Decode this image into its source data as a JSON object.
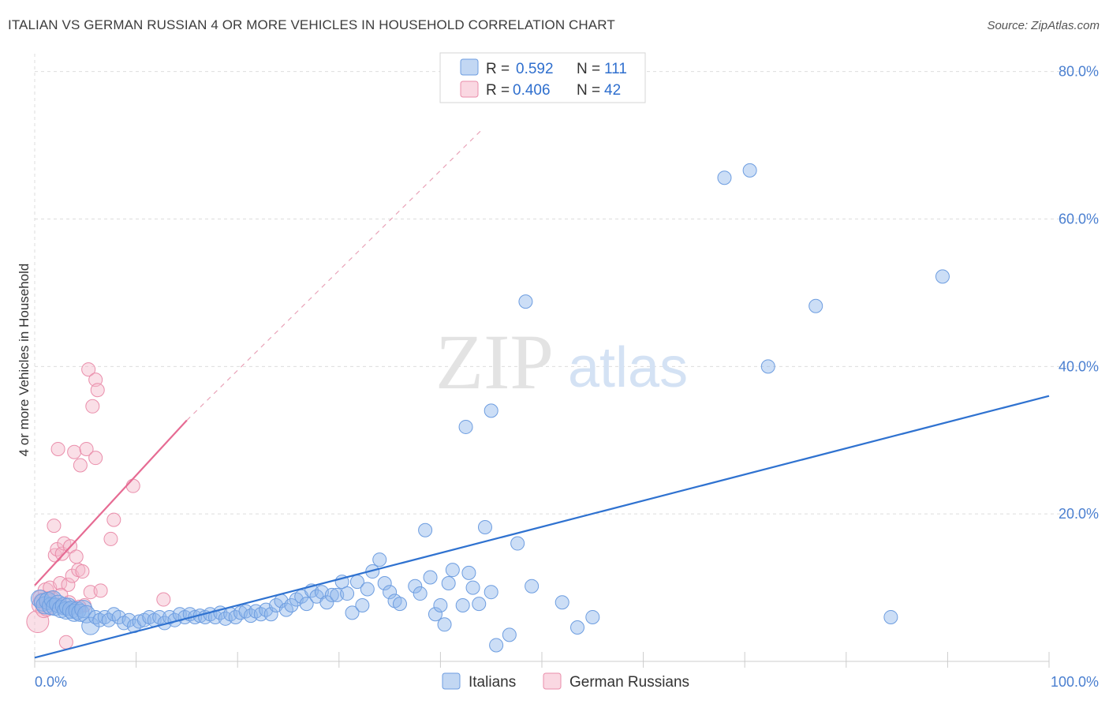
{
  "title": "ITALIAN VS GERMAN RUSSIAN 4 OR MORE VEHICLES IN HOUSEHOLD CORRELATION CHART",
  "source": "Source: ZipAtlas.com",
  "watermark": {
    "zip": "ZIP",
    "atlas": "atlas"
  },
  "colors": {
    "blue": "#8fb6ea",
    "blue_stroke": "#6d9de0",
    "blue_line": "#2f72d0",
    "pink": "#f5b8ca",
    "pink_stroke": "#ea8eab",
    "pink_line": "#e66b93",
    "grid": "#dddddd",
    "tick_text": "#4a7fd0"
  },
  "legend": {
    "rows": [
      {
        "r_label": "R = ",
        "r_value": "0.592",
        "n_label": "N = ",
        "n_value": "111"
      },
      {
        "r_label": "R = ",
        "r_value": "0.406",
        "n_label": "N = ",
        "n_value": "42"
      }
    ]
  },
  "bottom_legend": {
    "italians": "Italians",
    "german_russians": "German Russians"
  },
  "chart_data": {
    "type": "scatter",
    "title": "ITALIAN VS GERMAN RUSSIAN 4 OR MORE VEHICLES IN HOUSEHOLD CORRELATION CHART",
    "xlabel": "",
    "ylabel": "4 or more Vehicles in Household",
    "xlim": [
      0,
      100
    ],
    "ylim": [
      0,
      82
    ],
    "x_tick_labels": [
      "0.0%",
      "100.0%"
    ],
    "y_ticks": [
      20,
      40,
      60,
      80
    ],
    "y_tick_labels": [
      "20.0%",
      "40.0%",
      "60.0%",
      "80.0%"
    ],
    "grid": true,
    "series": [
      {
        "name": "Italians",
        "r": 0.592,
        "n": 111,
        "trend": {
          "x": [
            0,
            100
          ],
          "y": [
            0.5,
            36.0
          ],
          "dashed_extension": false
        },
        "points": [
          [
            0.5,
            8.5
          ],
          [
            0.8,
            8.0
          ],
          [
            1.0,
            7.6
          ],
          [
            1.3,
            8.2
          ],
          [
            1.6,
            7.5
          ],
          [
            1.8,
            8.4
          ],
          [
            2.0,
            7.4
          ],
          [
            2.3,
            7.8
          ],
          [
            2.6,
            7.1
          ],
          [
            2.9,
            7.5
          ],
          [
            3.1,
            6.9
          ],
          [
            3.3,
            7.4
          ],
          [
            3.6,
            7.0
          ],
          [
            3.9,
            6.6
          ],
          [
            4.2,
            6.9
          ],
          [
            4.5,
            6.6
          ],
          [
            4.8,
            7.1
          ],
          [
            5.1,
            6.4
          ],
          [
            5.5,
            4.8
          ],
          [
            6.0,
            6.0
          ],
          [
            6.4,
            5.6
          ],
          [
            6.9,
            6.0
          ],
          [
            7.3,
            5.6
          ],
          [
            7.8,
            6.4
          ],
          [
            8.3,
            6.0
          ],
          [
            8.8,
            5.2
          ],
          [
            9.3,
            5.6
          ],
          [
            9.8,
            4.8
          ],
          [
            10.3,
            5.4
          ],
          [
            10.8,
            5.6
          ],
          [
            11.3,
            6.0
          ],
          [
            11.8,
            5.6
          ],
          [
            12.3,
            6.0
          ],
          [
            12.8,
            5.2
          ],
          [
            13.3,
            6.0
          ],
          [
            13.8,
            5.6
          ],
          [
            14.3,
            6.4
          ],
          [
            14.8,
            6.0
          ],
          [
            15.3,
            6.4
          ],
          [
            15.8,
            6.0
          ],
          [
            16.3,
            6.2
          ],
          [
            16.8,
            6.0
          ],
          [
            17.3,
            6.4
          ],
          [
            17.8,
            6.0
          ],
          [
            18.3,
            6.6
          ],
          [
            18.8,
            5.8
          ],
          [
            19.3,
            6.4
          ],
          [
            19.8,
            6.0
          ],
          [
            20.3,
            6.6
          ],
          [
            20.8,
            6.8
          ],
          [
            21.3,
            6.2
          ],
          [
            21.8,
            6.8
          ],
          [
            22.3,
            6.4
          ],
          [
            22.8,
            7.0
          ],
          [
            23.3,
            6.4
          ],
          [
            23.8,
            7.6
          ],
          [
            24.3,
            8.2
          ],
          [
            24.8,
            7.0
          ],
          [
            25.3,
            7.6
          ],
          [
            25.8,
            8.4
          ],
          [
            26.3,
            8.8
          ],
          [
            26.8,
            7.8
          ],
          [
            27.3,
            9.6
          ],
          [
            27.8,
            8.8
          ],
          [
            28.3,
            9.4
          ],
          [
            28.8,
            8.0
          ],
          [
            29.3,
            9.0
          ],
          [
            29.8,
            9.0
          ],
          [
            30.3,
            10.8
          ],
          [
            30.8,
            9.2
          ],
          [
            31.3,
            6.6
          ],
          [
            31.8,
            10.8
          ],
          [
            32.3,
            7.6
          ],
          [
            32.8,
            9.8
          ],
          [
            33.3,
            12.2
          ],
          [
            34.0,
            13.8
          ],
          [
            34.5,
            10.6
          ],
          [
            35.0,
            9.4
          ],
          [
            35.5,
            8.2
          ],
          [
            36.0,
            7.8
          ],
          [
            37.5,
            10.2
          ],
          [
            38.0,
            9.2
          ],
          [
            38.5,
            17.8
          ],
          [
            39.0,
            11.4
          ],
          [
            39.5,
            6.4
          ],
          [
            40.0,
            7.6
          ],
          [
            40.4,
            5.0
          ],
          [
            40.8,
            10.6
          ],
          [
            41.2,
            12.4
          ],
          [
            42.2,
            7.6
          ],
          [
            42.8,
            12.0
          ],
          [
            43.2,
            10.0
          ],
          [
            43.8,
            7.8
          ],
          [
            44.4,
            18.2
          ],
          [
            45.0,
            9.4
          ],
          [
            45.5,
            2.2
          ],
          [
            46.8,
            3.6
          ],
          [
            47.6,
            16.0
          ],
          [
            48.4,
            48.8
          ],
          [
            49.0,
            10.2
          ],
          [
            52.0,
            8.0
          ],
          [
            53.5,
            4.6
          ],
          [
            55.0,
            6.0
          ],
          [
            84.4,
            6.0
          ],
          [
            68.0,
            65.6
          ],
          [
            70.5,
            66.6
          ],
          [
            72.3,
            40.0
          ],
          [
            77.0,
            48.2
          ],
          [
            89.5,
            52.2
          ],
          [
            45.0,
            34.0
          ],
          [
            42.5,
            31.8
          ]
        ]
      },
      {
        "name": "German Russians",
        "r": 0.406,
        "n": 42,
        "trend": {
          "x": [
            0,
            15
          ],
          "y": [
            10.3,
            32.7
          ],
          "dashed_to": [
            44,
            72
          ]
        },
        "points": [
          [
            0.3,
            5.4
          ],
          [
            0.5,
            7.6
          ],
          [
            0.7,
            8.2
          ],
          [
            0.9,
            7.0
          ],
          [
            1.1,
            9.6
          ],
          [
            1.3,
            8.4
          ],
          [
            1.5,
            10.0
          ],
          [
            1.7,
            8.6
          ],
          [
            1.9,
            18.4
          ],
          [
            2.0,
            14.4
          ],
          [
            2.2,
            15.2
          ],
          [
            2.3,
            28.8
          ],
          [
            2.5,
            10.6
          ],
          [
            2.7,
            14.6
          ],
          [
            2.9,
            16.0
          ],
          [
            3.1,
            2.6
          ],
          [
            3.3,
            10.4
          ],
          [
            3.5,
            15.6
          ],
          [
            3.7,
            11.6
          ],
          [
            3.9,
            28.4
          ],
          [
            4.1,
            14.2
          ],
          [
            4.3,
            12.4
          ],
          [
            4.5,
            26.6
          ],
          [
            4.7,
            12.2
          ],
          [
            4.9,
            7.6
          ],
          [
            5.1,
            28.8
          ],
          [
            5.3,
            39.6
          ],
          [
            5.5,
            9.4
          ],
          [
            5.7,
            34.6
          ],
          [
            6.0,
            38.2
          ],
          [
            6.2,
            36.8
          ],
          [
            6.0,
            27.6
          ],
          [
            6.5,
            9.6
          ],
          [
            7.5,
            16.6
          ],
          [
            7.8,
            19.2
          ],
          [
            9.7,
            23.8
          ],
          [
            12.7,
            8.4
          ],
          [
            1.2,
            7.2
          ],
          [
            2.6,
            9.0
          ],
          [
            3.4,
            8.0
          ],
          [
            4.4,
            7.4
          ],
          [
            0.6,
            8.6
          ]
        ]
      }
    ]
  }
}
